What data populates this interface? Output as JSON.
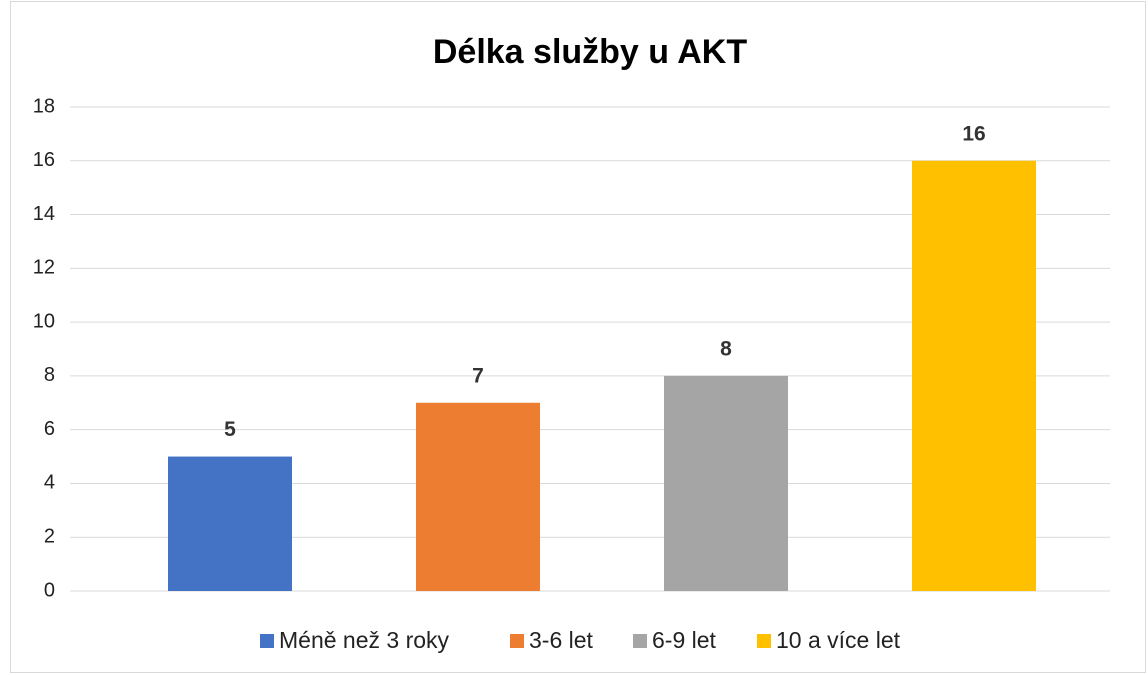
{
  "chart_data": {
    "type": "bar",
    "title": "Délka služby u AKT",
    "categories": [
      null
    ],
    "series": [
      {
        "name": "Méně než 3 roky",
        "color": "#4472c4",
        "values": [
          5
        ]
      },
      {
        "name": "3-6 let",
        "color": "#ed7d31",
        "values": [
          7
        ]
      },
      {
        "name": "6-9 let",
        "color": "#a5a5a5",
        "values": [
          8
        ]
      },
      {
        "name": "10 a více let",
        "color": "#ffc000",
        "values": [
          16
        ]
      }
    ],
    "ylim": [
      0,
      18
    ],
    "yticks": [
      0,
      2,
      4,
      6,
      8,
      10,
      12,
      14,
      16,
      18
    ],
    "grid": true,
    "legend": "bottom"
  }
}
